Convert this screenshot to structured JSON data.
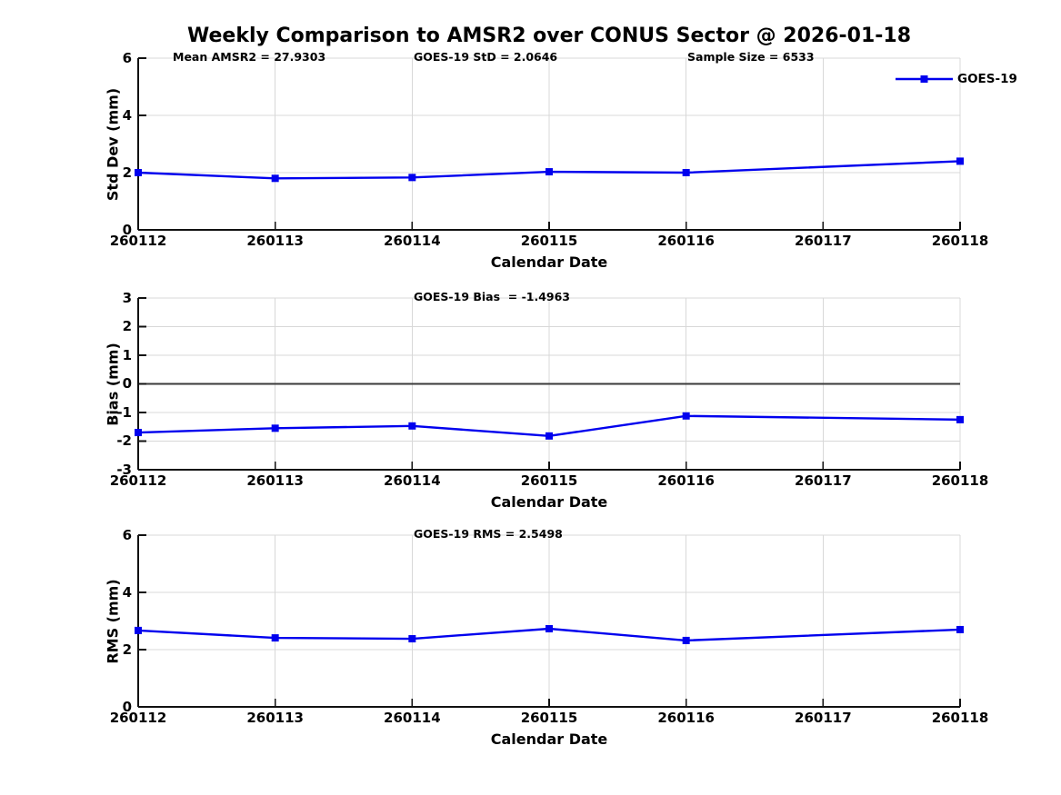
{
  "title": "Weekly Comparison to AMSR2 over CONUS Sector @ 2026-01-18",
  "legend": {
    "label": "GOES-19"
  },
  "colors": {
    "series": "#0000EE",
    "grid": "#d8d8d8",
    "zero_line": "#3a3a3a",
    "axis": "#111111",
    "text": "#000000"
  },
  "x_axis": {
    "label": "Calendar Date",
    "categories": [
      "260112",
      "260113",
      "260114",
      "260115",
      "260116",
      "260117",
      "260118"
    ]
  },
  "chart_data": [
    {
      "type": "line",
      "name": "std-dev",
      "series_name": "GOES-19",
      "ylabel": "Std Dev (mm)",
      "xlabel": "Calendar Date",
      "ylim": [
        0,
        6
      ],
      "yticks": [
        0,
        2,
        4,
        6
      ],
      "grid": true,
      "legend_position": "top-right",
      "has_legend": true,
      "annotations": [
        {
          "text": "Mean AMSR2 = 27.9303",
          "x": 38
        },
        {
          "text": "GOES-19 StD = 2.0646",
          "x": 303
        },
        {
          "text": "Sample Size = 6533",
          "x": 604
        }
      ],
      "points": [
        [
          "260112",
          2.0
        ],
        [
          "260113",
          1.8
        ],
        [
          "260114",
          1.83
        ],
        [
          "260115",
          2.03
        ],
        [
          "260116",
          2.0
        ],
        [
          "260118",
          2.4
        ]
      ],
      "missing_dates": [
        "260117"
      ]
    },
    {
      "type": "line",
      "name": "bias",
      "series_name": "GOES-19",
      "ylabel": "Bias (mm)",
      "xlabel": "Calendar Date",
      "ylim": [
        -3,
        3
      ],
      "yticks": [
        -3,
        -2,
        -1,
        0,
        1,
        2,
        3
      ],
      "grid": true,
      "zero_line": 0,
      "annotations": [
        {
          "text": "GOES-19 Bias  = -1.4963",
          "x": 303
        }
      ],
      "points": [
        [
          "260112",
          -1.7
        ],
        [
          "260113",
          -1.55
        ],
        [
          "260114",
          -1.47
        ],
        [
          "260115",
          -1.82
        ],
        [
          "260116",
          -1.12
        ],
        [
          "260118",
          -1.25
        ]
      ],
      "missing_dates": [
        "260117"
      ]
    },
    {
      "type": "line",
      "name": "rms",
      "series_name": "GOES-19",
      "ylabel": "RMS (mm)",
      "xlabel": "Calendar Date",
      "ylim": [
        0,
        6
      ],
      "yticks": [
        0,
        2,
        4,
        6
      ],
      "grid": true,
      "annotations": [
        {
          "text": "GOES-19 RMS = 2.5498",
          "x": 303
        }
      ],
      "points": [
        [
          "260112",
          2.67
        ],
        [
          "260113",
          2.41
        ],
        [
          "260114",
          2.38
        ],
        [
          "260115",
          2.73
        ],
        [
          "260116",
          2.32
        ],
        [
          "260118",
          2.7
        ]
      ],
      "missing_dates": [
        "260117"
      ]
    }
  ]
}
